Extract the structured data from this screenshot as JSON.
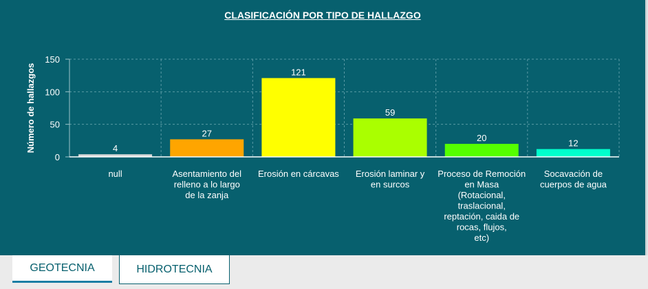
{
  "chart_data": {
    "type": "bar",
    "title": "CLASIFICACIÓN POR TIPO DE HALLAZGO",
    "ylabel": "Número de hallazgos",
    "xlabel": "",
    "ylim": [
      0,
      150
    ],
    "yticks": [
      0,
      50,
      100,
      150
    ],
    "grid": true,
    "categories": [
      [
        "null"
      ],
      [
        "Asentamiento del",
        "relleno a lo largo",
        "de la zanja"
      ],
      [
        "Erosión en cárcavas"
      ],
      [
        "Erosión laminar y",
        "en surcos"
      ],
      [
        "Proceso de Remoción",
        "en Masa",
        "(Rotacional,",
        "traslacional,",
        "reptación, caida de",
        "rocas, flujos,",
        "etc)"
      ],
      [
        "Socavación de",
        "cuerpos de agua"
      ]
    ],
    "values": [
      4,
      27,
      121,
      59,
      20,
      12
    ],
    "colors": [
      "#d9d9d9",
      "#ffa500",
      "#ffff00",
      "#aaff00",
      "#55ff00",
      "#00ffcc"
    ]
  },
  "tabs": [
    {
      "label": "GEOTECNIA",
      "active": true
    },
    {
      "label": "HIDROTECNIA",
      "active": false
    }
  ]
}
